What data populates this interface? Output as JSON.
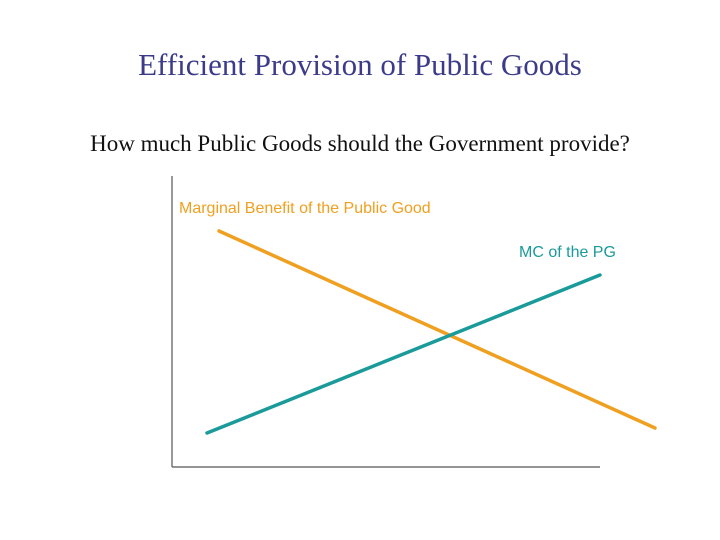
{
  "slide": {
    "title": "Efficient Provision of Public Goods",
    "question": "How much Public Goods should the Government provide?"
  },
  "diagram": {
    "mb_label": "Marginal Benefit of the Public Good",
    "mc_label": "MC of the PG",
    "colors": {
      "title": "#3b3b8a",
      "mb_curve": "#f0a020",
      "mc_curve": "#1a9a9a",
      "axes": "#555555"
    }
  }
}
